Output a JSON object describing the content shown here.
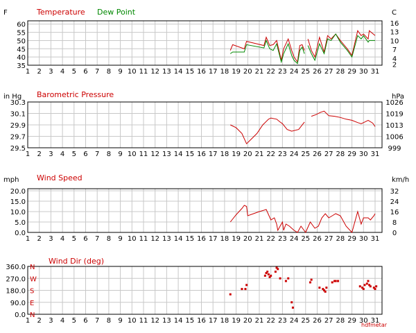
{
  "colors": {
    "red": "#cc0000",
    "green": "#008800",
    "grid": "#c8c8c8",
    "frame": "#000000",
    "text": "#000000"
  },
  "watermark": "hdfmetar",
  "chart_data": [
    {
      "id": "temperature",
      "type": "line",
      "left_unit": "F",
      "right_unit": "C",
      "titles": [
        {
          "text": "Temperature",
          "color": "#cc0000"
        },
        {
          "text": "Dew Point",
          "color": "#008800"
        }
      ],
      "x_ticks": [
        "1",
        "2",
        "3",
        "4",
        "5",
        "6",
        "7",
        "8",
        "9",
        "10",
        "11",
        "12",
        "13",
        "14",
        "15",
        "16",
        "17",
        "18",
        "19",
        "20",
        "21",
        "22",
        "23",
        "24",
        "25",
        "26",
        "27",
        "28",
        "29",
        "30",
        "31"
      ],
      "xlim": [
        1,
        31.6
      ],
      "ylim": [
        35,
        62
      ],
      "y_ticks": [
        "35",
        "40",
        "45",
        "50",
        "55",
        "60"
      ],
      "y_tick_values": [
        35,
        40,
        45,
        50,
        55,
        60
      ],
      "right_ticks": [
        "2",
        "4",
        "7",
        "10",
        "13",
        "16"
      ],
      "right_tick_values": [
        35.6,
        39.2,
        44.6,
        50,
        55.4,
        60.8
      ],
      "series": [
        {
          "name": "Temperature",
          "color": "#cc0000",
          "segments": [
            [
              [
                18.5,
                44
              ],
              [
                18.7,
                47.5
              ],
              [
                19.7,
                45
              ],
              [
                19.9,
                49.5
              ],
              [
                21.4,
                47
              ],
              [
                21.6,
                52
              ],
              [
                21.9,
                47
              ],
              [
                22.2,
                47.5
              ],
              [
                22.5,
                50
              ],
              [
                22.9,
                38
              ],
              [
                23.1,
                45
              ],
              [
                23.5,
                51
              ],
              [
                23.8,
                44
              ],
              [
                24.0,
                40
              ],
              [
                24.3,
                37
              ],
              [
                24.5,
                47
              ],
              [
                24.7,
                47.5
              ],
              [
                24.9,
                44
              ]
            ],
            [
              [
                25.2,
                51
              ],
              [
                25.5,
                44
              ],
              [
                25.8,
                40
              ],
              [
                26.2,
                52
              ],
              [
                26.6,
                43
              ],
              [
                26.9,
                53
              ],
              [
                27.2,
                51
              ],
              [
                27.6,
                54
              ],
              [
                28.0,
                50
              ],
              [
                28.6,
                45
              ],
              [
                29.0,
                41
              ],
              [
                29.5,
                56
              ],
              [
                29.8,
                53
              ],
              [
                30.0,
                54
              ],
              [
                30.4,
                51
              ],
              [
                30.5,
                56
              ],
              [
                31.0,
                53
              ]
            ]
          ]
        },
        {
          "name": "Dew Point",
          "color": "#008800",
          "segments": [
            [
              [
                18.5,
                42
              ],
              [
                18.7,
                43
              ],
              [
                19.7,
                43
              ],
              [
                19.9,
                47.5
              ],
              [
                21.4,
                45.5
              ],
              [
                21.6,
                50
              ],
              [
                21.9,
                45
              ],
              [
                22.2,
                44
              ],
              [
                22.5,
                48
              ],
              [
                22.9,
                37
              ],
              [
                23.1,
                42
              ],
              [
                23.5,
                48
              ],
              [
                23.8,
                41
              ],
              [
                24.0,
                38
              ],
              [
                24.3,
                36
              ],
              [
                24.5,
                44
              ],
              [
                24.7,
                46
              ],
              [
                24.9,
                42
              ]
            ],
            [
              [
                25.2,
                47
              ],
              [
                25.5,
                42
              ],
              [
                25.8,
                38
              ],
              [
                26.2,
                48
              ],
              [
                26.6,
                42
              ],
              [
                26.9,
                51
              ],
              [
                27.2,
                50
              ],
              [
                27.6,
                54
              ],
              [
                28.0,
                49
              ],
              [
                28.6,
                44
              ],
              [
                29.0,
                40
              ],
              [
                29.5,
                53
              ],
              [
                29.8,
                51
              ],
              [
                30.0,
                53
              ],
              [
                30.4,
                49
              ],
              [
                30.5,
                50
              ],
              [
                31.0,
                50
              ]
            ]
          ]
        }
      ]
    },
    {
      "id": "pressure",
      "type": "line",
      "left_unit": "in Hg",
      "right_unit": "hPa",
      "titles": [
        {
          "text": "Barometric Pressure",
          "color": "#cc0000"
        }
      ],
      "x_ticks": [
        "1",
        "2",
        "3",
        "4",
        "5",
        "6",
        "7",
        "8",
        "9",
        "10",
        "11",
        "12",
        "13",
        "14",
        "15",
        "16",
        "17",
        "18",
        "19",
        "20",
        "21",
        "22",
        "23",
        "24",
        "25",
        "26",
        "27",
        "28",
        "29",
        "30",
        "31"
      ],
      "xlim": [
        1,
        31.6
      ],
      "ylim": [
        29.5,
        30.3
      ],
      "y_ticks": [
        "29.5",
        "29.7",
        "29.9",
        "30.1",
        "30.3"
      ],
      "y_tick_values": [
        29.5,
        29.7,
        29.9,
        30.1,
        30.3
      ],
      "right_ticks": [
        "999",
        "1006",
        "1013",
        "1019",
        "1026"
      ],
      "right_tick_values": [
        29.5,
        29.7,
        29.9,
        30.1,
        30.3
      ],
      "series": [
        {
          "name": "",
          "color": "#cc0000",
          "segments": [
            [
              [
                18.5,
                29.9
              ],
              [
                19.0,
                29.85
              ],
              [
                19.5,
                29.75
              ],
              [
                19.9,
                29.57
              ],
              [
                20.3,
                29.65
              ],
              [
                20.8,
                29.75
              ],
              [
                21.3,
                29.9
              ],
              [
                21.8,
                30.0
              ],
              [
                22.0,
                30.02
              ],
              [
                22.5,
                30.0
              ],
              [
                22.8,
                29.95
              ],
              [
                23.0,
                29.92
              ],
              [
                23.4,
                29.82
              ],
              [
                23.8,
                29.79
              ],
              [
                24.4,
                29.82
              ],
              [
                24.9,
                29.95
              ]
            ],
            [
              [
                25.5,
                30.05
              ],
              [
                25.9,
                30.08
              ],
              [
                26.3,
                30.12
              ],
              [
                26.6,
                30.14
              ],
              [
                27.0,
                30.06
              ],
              [
                27.5,
                30.05
              ],
              [
                28.0,
                30.03
              ],
              [
                28.5,
                30.0
              ],
              [
                29.0,
                29.98
              ],
              [
                29.5,
                29.94
              ],
              [
                29.8,
                29.92
              ],
              [
                30.1,
                29.95
              ],
              [
                30.4,
                29.98
              ],
              [
                30.8,
                29.93
              ],
              [
                31.0,
                29.87
              ]
            ]
          ]
        }
      ]
    },
    {
      "id": "wind_speed",
      "type": "line",
      "left_unit": "mph",
      "right_unit": "km/h",
      "titles": [
        {
          "text": "Wind Speed",
          "color": "#cc0000"
        }
      ],
      "x_ticks": [
        "1",
        "2",
        "3",
        "4",
        "5",
        "6",
        "7",
        "8",
        "9",
        "10",
        "11",
        "12",
        "13",
        "14",
        "15",
        "16",
        "17",
        "18",
        "19",
        "20",
        "21",
        "22",
        "23",
        "24",
        "25",
        "26",
        "27",
        "28",
        "29",
        "30",
        "31"
      ],
      "xlim": [
        1,
        31.6
      ],
      "ylim": [
        0,
        21
      ],
      "y_ticks": [
        "0.0",
        "5.0",
        "10.0",
        "15.0",
        "20.0"
      ],
      "y_tick_values": [
        0,
        5,
        10,
        15,
        20
      ],
      "right_ticks": [
        "0",
        "8",
        "16",
        "24",
        "32"
      ],
      "right_tick_values": [
        0,
        5,
        10,
        15,
        20
      ],
      "series": [
        {
          "name": "",
          "color": "#cc0000",
          "segments": [
            [
              [
                18.5,
                5
              ],
              [
                19.0,
                8.5
              ],
              [
                19.5,
                11.5
              ],
              [
                19.7,
                13
              ],
              [
                19.9,
                12.5
              ],
              [
                20.0,
                8
              ],
              [
                20.5,
                9
              ],
              [
                21.0,
                10
              ],
              [
                21.6,
                11
              ],
              [
                22.0,
                6
              ],
              [
                22.3,
                7
              ],
              [
                22.5,
                4
              ],
              [
                22.6,
                1
              ],
              [
                22.8,
                3
              ],
              [
                23.0,
                5
              ],
              [
                23.1,
                1
              ],
              [
                23.3,
                4
              ],
              [
                23.6,
                3
              ],
              [
                24.0,
                1
              ],
              [
                24.3,
                0
              ],
              [
                24.6,
                3
              ],
              [
                25.0,
                0
              ],
              [
                25.4,
                5
              ],
              [
                25.8,
                2
              ],
              [
                26.1,
                3
              ],
              [
                26.4,
                7
              ],
              [
                26.7,
                9
              ],
              [
                27.0,
                7
              ],
              [
                27.3,
                8
              ],
              [
                27.6,
                9
              ],
              [
                28.0,
                8
              ],
              [
                28.5,
                3
              ],
              [
                29.0,
                0
              ],
              [
                29.5,
                10
              ],
              [
                29.8,
                4
              ],
              [
                30.0,
                7
              ],
              [
                30.4,
                7
              ],
              [
                30.6,
                6
              ],
              [
                30.9,
                8
              ],
              [
                31.0,
                9
              ]
            ]
          ]
        }
      ]
    },
    {
      "id": "wind_dir",
      "type": "scatter",
      "left_unit": "",
      "right_unit": "",
      "titles": [
        {
          "text": "Wind Dir (deg)",
          "color": "#cc0000"
        }
      ],
      "x_ticks": [
        "1",
        "2",
        "3",
        "4",
        "5",
        "6",
        "7",
        "8",
        "9",
        "10",
        "11",
        "12",
        "13",
        "14",
        "15",
        "16",
        "17",
        "18",
        "19",
        "20",
        "21",
        "22",
        "23",
        "24",
        "25",
        "26",
        "27",
        "28",
        "29",
        "30",
        "31"
      ],
      "xlim": [
        1,
        31.6
      ],
      "ylim": [
        0,
        360
      ],
      "y_ticks": [
        "0.0",
        "90.0",
        "180.0",
        "270.0",
        "360.0"
      ],
      "y_tick_values": [
        0,
        90,
        180,
        270,
        360
      ],
      "compass": [
        "N",
        "E",
        "S",
        "W",
        "N"
      ],
      "series": [
        {
          "name": "",
          "color": "#cc0000",
          "points": [
            [
              18.5,
              150
            ],
            [
              19.5,
              190
            ],
            [
              19.8,
              190
            ],
            [
              19.9,
              220
            ],
            [
              21.5,
              290
            ],
            [
              21.6,
              310
            ],
            [
              21.7,
              320
            ],
            [
              21.8,
              300
            ],
            [
              21.9,
              280
            ],
            [
              22.0,
              290
            ],
            [
              22.4,
              320
            ],
            [
              22.5,
              350
            ],
            [
              22.6,
              340
            ],
            [
              22.8,
              270
            ],
            [
              23.3,
              250
            ],
            [
              23.5,
              270
            ],
            [
              23.8,
              90
            ],
            [
              23.9,
              50
            ],
            [
              25.4,
              240
            ],
            [
              25.5,
              260
            ],
            [
              26.2,
              200
            ],
            [
              26.5,
              190
            ],
            [
              26.6,
              180
            ],
            [
              26.7,
              170
            ],
            [
              26.8,
              200
            ],
            [
              27.3,
              240
            ],
            [
              27.5,
              250
            ],
            [
              27.6,
              250
            ],
            [
              27.8,
              250
            ],
            [
              29.7,
              210
            ],
            [
              29.9,
              200
            ],
            [
              30.0,
              190
            ],
            [
              30.1,
              220
            ],
            [
              30.3,
              230
            ],
            [
              30.4,
              250
            ],
            [
              30.5,
              220
            ],
            [
              30.6,
              210
            ],
            [
              30.9,
              200
            ],
            [
              31.0,
              190
            ],
            [
              31.1,
              210
            ]
          ]
        }
      ]
    }
  ]
}
